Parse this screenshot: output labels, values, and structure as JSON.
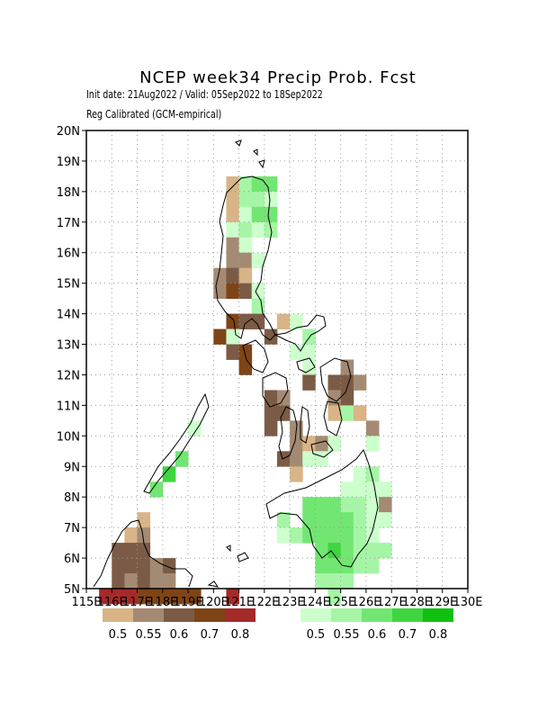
{
  "header": {
    "title": "NCEP week34 Precip Prob. Fcst",
    "init_line": "Init date: 21Aug2022 / Valid: 05Sep2022 to 18Sep2022",
    "calib_line": "Reg Calibrated (GCM-empirical)"
  },
  "map": {
    "lon_range": [
      115,
      130
    ],
    "lat_range": [
      5,
      20
    ],
    "lon_ticks": [
      "115E",
      "116E",
      "117E",
      "118E",
      "119E",
      "120E",
      "121E",
      "122E",
      "123E",
      "124E",
      "125E",
      "126E",
      "127E",
      "128E",
      "129E",
      "130E"
    ],
    "lat_ticks": [
      "5N",
      "6N",
      "7N",
      "8N",
      "9N",
      "10N",
      "11N",
      "12N",
      "13N",
      "14N",
      "15N",
      "16N",
      "17N",
      "18N",
      "19N",
      "20N"
    ],
    "grid": "dotted",
    "cell_deg": 0.5
  },
  "legend": {
    "dry": {
      "colors": [
        "#d8b486",
        "#a58a73",
        "#7b5b45",
        "#7f4416",
        "#a52a2a"
      ],
      "labels": [
        "0.5",
        "0.55",
        "0.6",
        "0.7",
        "0.8"
      ]
    },
    "wet": {
      "colors": [
        "#ccffcc",
        "#a6f5a6",
        "#72e672",
        "#3ed63e",
        "#10c010"
      ],
      "labels": [
        "0.5",
        "0.55",
        "0.6",
        "0.7",
        "0.8"
      ]
    }
  },
  "cells": [
    {
      "lon": 120.5,
      "lat": 18.0,
      "c": "#d8b486"
    },
    {
      "lon": 121.0,
      "lat": 18.0,
      "c": "#a6f5a6"
    },
    {
      "lon": 121.5,
      "lat": 18.0,
      "c": "#72e672"
    },
    {
      "lon": 122.0,
      "lat": 18.0,
      "c": "#72e672"
    },
    {
      "lon": 120.5,
      "lat": 17.5,
      "c": "#d8b486"
    },
    {
      "lon": 121.0,
      "lat": 17.5,
      "c": "#a6f5a6"
    },
    {
      "lon": 121.5,
      "lat": 17.5,
      "c": "#a6f5a6"
    },
    {
      "lon": 122.0,
      "lat": 17.5,
      "c": "#ccffcc"
    },
    {
      "lon": 120.5,
      "lat": 17.0,
      "c": "#d8b486"
    },
    {
      "lon": 121.0,
      "lat": 17.0,
      "c": "#ccffcc"
    },
    {
      "lon": 121.5,
      "lat": 17.0,
      "c": "#72e672"
    },
    {
      "lon": 122.0,
      "lat": 17.0,
      "c": "#72e672"
    },
    {
      "lon": 120.5,
      "lat": 16.5,
      "c": "#ccffcc"
    },
    {
      "lon": 121.0,
      "lat": 16.5,
      "c": "#a6f5a6"
    },
    {
      "lon": 121.5,
      "lat": 16.5,
      "c": "#ccffcc"
    },
    {
      "lon": 122.0,
      "lat": 16.5,
      "c": "#a6f5a6"
    },
    {
      "lon": 120.5,
      "lat": 16.0,
      "c": "#a58a73"
    },
    {
      "lon": 121.0,
      "lat": 16.0,
      "c": "#ccffcc"
    },
    {
      "lon": 120.5,
      "lat": 15.5,
      "c": "#a58a73"
    },
    {
      "lon": 121.0,
      "lat": 15.5,
      "c": "#a58a73"
    },
    {
      "lon": 121.5,
      "lat": 15.5,
      "c": "#ccffcc"
    },
    {
      "lon": 120.0,
      "lat": 15.0,
      "c": "#a58a73"
    },
    {
      "lon": 120.5,
      "lat": 15.0,
      "c": "#7b5b45"
    },
    {
      "lon": 121.0,
      "lat": 15.0,
      "c": "#d8b486"
    },
    {
      "lon": 120.0,
      "lat": 14.5,
      "c": "#a58a73"
    },
    {
      "lon": 120.5,
      "lat": 14.5,
      "c": "#7f4416"
    },
    {
      "lon": 121.0,
      "lat": 14.5,
      "c": "#7b5b45"
    },
    {
      "lon": 121.5,
      "lat": 14.5,
      "c": "#ccffcc"
    },
    {
      "lon": 121.5,
      "lat": 14.0,
      "c": "#a6f5a6"
    },
    {
      "lon": 120.5,
      "lat": 13.5,
      "c": "#7f4416"
    },
    {
      "lon": 121.0,
      "lat": 13.5,
      "c": "#7b5b45"
    },
    {
      "lon": 121.5,
      "lat": 13.5,
      "c": "#7b5b45"
    },
    {
      "lon": 122.5,
      "lat": 13.5,
      "c": "#d8b486"
    },
    {
      "lon": 123.0,
      "lat": 13.5,
      "c": "#ccffcc"
    },
    {
      "lon": 120.0,
      "lat": 13.0,
      "c": "#7f4416"
    },
    {
      "lon": 120.5,
      "lat": 13.0,
      "c": "#ccffcc"
    },
    {
      "lon": 122.0,
      "lat": 13.0,
      "c": "#7b5b45"
    },
    {
      "lon": 123.5,
      "lat": 13.0,
      "c": "#a6f5a6"
    },
    {
      "lon": 120.5,
      "lat": 12.5,
      "c": "#7b5b45"
    },
    {
      "lon": 121.0,
      "lat": 12.5,
      "c": "#7f4416"
    },
    {
      "lon": 123.0,
      "lat": 12.5,
      "c": "#ccffcc"
    },
    {
      "lon": 123.5,
      "lat": 12.5,
      "c": "#ccffcc"
    },
    {
      "lon": 121.0,
      "lat": 12.0,
      "c": "#7f4416"
    },
    {
      "lon": 123.5,
      "lat": 12.0,
      "c": "#ccffcc"
    },
    {
      "lon": 125.0,
      "lat": 12.0,
      "c": "#a58a73"
    },
    {
      "lon": 123.5,
      "lat": 11.5,
      "c": "#7b5b45"
    },
    {
      "lon": 124.5,
      "lat": 11.5,
      "c": "#7b5b45"
    },
    {
      "lon": 125.0,
      "lat": 11.5,
      "c": "#7b5b45"
    },
    {
      "lon": 125.5,
      "lat": 11.5,
      "c": "#a58a73"
    },
    {
      "lon": 122.0,
      "lat": 11.0,
      "c": "#7b5b45"
    },
    {
      "lon": 122.5,
      "lat": 11.0,
      "c": "#a58a73"
    },
    {
      "lon": 124.5,
      "lat": 11.0,
      "c": "#a58a73"
    },
    {
      "lon": 125.0,
      "lat": 11.0,
      "c": "#7b5b45"
    },
    {
      "lon": 122.0,
      "lat": 10.5,
      "c": "#7b5b45"
    },
    {
      "lon": 122.5,
      "lat": 10.5,
      "c": "#7b5b45"
    },
    {
      "lon": 124.5,
      "lat": 10.5,
      "c": "#d8b486"
    },
    {
      "lon": 125.0,
      "lat": 10.5,
      "c": "#a6f5a6"
    },
    {
      "lon": 125.5,
      "lat": 10.5,
      "c": "#d8b486"
    },
    {
      "lon": 122.0,
      "lat": 10.0,
      "c": "#7b5b45"
    },
    {
      "lon": 123.0,
      "lat": 10.0,
      "c": "#a58a73"
    },
    {
      "lon": 126.0,
      "lat": 10.0,
      "c": "#a58a73"
    },
    {
      "lon": 123.0,
      "lat": 9.5,
      "c": "#a58a73"
    },
    {
      "lon": 123.5,
      "lat": 9.5,
      "c": "#d8b486"
    },
    {
      "lon": 124.0,
      "lat": 9.5,
      "c": "#a58a73"
    },
    {
      "lon": 124.5,
      "lat": 9.5,
      "c": "#ccffcc"
    },
    {
      "lon": 126.0,
      "lat": 9.5,
      "c": "#ccffcc"
    },
    {
      "lon": 122.5,
      "lat": 9.0,
      "c": "#7b5b45"
    },
    {
      "lon": 123.0,
      "lat": 9.0,
      "c": "#a58a73"
    },
    {
      "lon": 123.5,
      "lat": 9.0,
      "c": "#ccffcc"
    },
    {
      "lon": 124.0,
      "lat": 9.0,
      "c": "#ccffcc"
    },
    {
      "lon": 123.0,
      "lat": 8.5,
      "c": "#d8b486"
    },
    {
      "lon": 125.5,
      "lat": 8.5,
      "c": "#ccffcc"
    },
    {
      "lon": 126.0,
      "lat": 8.5,
      "c": "#a6f5a6"
    },
    {
      "lon": 125.0,
      "lat": 8.0,
      "c": "#ccffcc"
    },
    {
      "lon": 125.5,
      "lat": 8.0,
      "c": "#ccffcc"
    },
    {
      "lon": 126.0,
      "lat": 8.0,
      "c": "#ccffcc"
    },
    {
      "lon": 126.5,
      "lat": 8.0,
      "c": "#ccffcc"
    },
    {
      "lon": 123.5,
      "lat": 7.5,
      "c": "#72e672"
    },
    {
      "lon": 124.0,
      "lat": 7.5,
      "c": "#72e672"
    },
    {
      "lon": 124.5,
      "lat": 7.5,
      "c": "#72e672"
    },
    {
      "lon": 125.0,
      "lat": 7.5,
      "c": "#a6f5a6"
    },
    {
      "lon": 125.5,
      "lat": 7.5,
      "c": "#a6f5a6"
    },
    {
      "lon": 126.0,
      "lat": 7.5,
      "c": "#ccffcc"
    },
    {
      "lon": 126.5,
      "lat": 7.5,
      "c": "#a58a73"
    },
    {
      "lon": 122.5,
      "lat": 7.0,
      "c": "#a6f5a6"
    },
    {
      "lon": 123.5,
      "lat": 7.0,
      "c": "#72e672"
    },
    {
      "lon": 124.0,
      "lat": 7.0,
      "c": "#72e672"
    },
    {
      "lon": 124.5,
      "lat": 7.0,
      "c": "#72e672"
    },
    {
      "lon": 125.0,
      "lat": 7.0,
      "c": "#72e672"
    },
    {
      "lon": 125.5,
      "lat": 7.0,
      "c": "#a6f5a6"
    },
    {
      "lon": 126.0,
      "lat": 7.0,
      "c": "#ccffcc"
    },
    {
      "lon": 126.5,
      "lat": 7.0,
      "c": "#ccffcc"
    },
    {
      "lon": 122.5,
      "lat": 6.5,
      "c": "#ccffcc"
    },
    {
      "lon": 123.0,
      "lat": 6.5,
      "c": "#a6f5a6"
    },
    {
      "lon": 123.5,
      "lat": 6.5,
      "c": "#72e672"
    },
    {
      "lon": 124.0,
      "lat": 6.5,
      "c": "#72e672"
    },
    {
      "lon": 124.5,
      "lat": 6.5,
      "c": "#72e672"
    },
    {
      "lon": 125.0,
      "lat": 6.5,
      "c": "#72e672"
    },
    {
      "lon": 125.5,
      "lat": 6.5,
      "c": "#a6f5a6"
    },
    {
      "lon": 126.0,
      "lat": 6.5,
      "c": "#ccffcc"
    },
    {
      "lon": 124.0,
      "lat": 6.0,
      "c": "#72e672"
    },
    {
      "lon": 124.5,
      "lat": 6.0,
      "c": "#3ed63e"
    },
    {
      "lon": 125.0,
      "lat": 6.0,
      "c": "#72e672"
    },
    {
      "lon": 125.5,
      "lat": 6.0,
      "c": "#a6f5a6"
    },
    {
      "lon": 126.0,
      "lat": 6.0,
      "c": "#a6f5a6"
    },
    {
      "lon": 126.5,
      "lat": 6.0,
      "c": "#a6f5a6"
    },
    {
      "lon": 124.0,
      "lat": 5.5,
      "c": "#72e672"
    },
    {
      "lon": 124.5,
      "lat": 5.5,
      "c": "#72e672"
    },
    {
      "lon": 125.0,
      "lat": 5.5,
      "c": "#72e672"
    },
    {
      "lon": 125.5,
      "lat": 5.5,
      "c": "#a6f5a6"
    },
    {
      "lon": 126.0,
      "lat": 5.5,
      "c": "#a6f5a6"
    },
    {
      "lon": 124.0,
      "lat": 5.0,
      "c": "#a6f5a6"
    },
    {
      "lon": 124.5,
      "lat": 5.0,
      "c": "#a6f5a6"
    },
    {
      "lon": 125.0,
      "lat": 5.0,
      "c": "#a6f5a6"
    },
    {
      "lon": 124.5,
      "lat": 4.5,
      "c": "#a6f5a6"
    },
    {
      "lon": 118.5,
      "lat": 9.0,
      "c": "#72e672"
    },
    {
      "lon": 118.0,
      "lat": 8.5,
      "c": "#3ed63e"
    },
    {
      "lon": 117.5,
      "lat": 8.0,
      "c": "#72e672"
    },
    {
      "lon": 119.0,
      "lat": 10.0,
      "c": "#ccffcc"
    },
    {
      "lon": 117.0,
      "lat": 7.0,
      "c": "#d8b486"
    },
    {
      "lon": 116.5,
      "lat": 6.5,
      "c": "#d8b486"
    },
    {
      "lon": 117.0,
      "lat": 6.5,
      "c": "#a58a73"
    },
    {
      "lon": 116.0,
      "lat": 6.0,
      "c": "#7b5b45"
    },
    {
      "lon": 116.5,
      "lat": 6.0,
      "c": "#7b5b45"
    },
    {
      "lon": 117.0,
      "lat": 6.0,
      "c": "#7b5b45"
    },
    {
      "lon": 116.0,
      "lat": 5.5,
      "c": "#7b5b45"
    },
    {
      "lon": 116.5,
      "lat": 5.5,
      "c": "#7b5b45"
    },
    {
      "lon": 117.0,
      "lat": 5.5,
      "c": "#7b5b45"
    },
    {
      "lon": 117.5,
      "lat": 5.5,
      "c": "#a58a73"
    },
    {
      "lon": 118.0,
      "lat": 5.5,
      "c": "#7b5b45"
    },
    {
      "lon": 116.0,
      "lat": 5.0,
      "c": "#7b5b45"
    },
    {
      "lon": 116.5,
      "lat": 5.0,
      "c": "#a58a73"
    },
    {
      "lon": 117.0,
      "lat": 5.0,
      "c": "#7b5b45"
    },
    {
      "lon": 117.5,
      "lat": 5.0,
      "c": "#a58a73"
    },
    {
      "lon": 118.0,
      "lat": 5.0,
      "c": "#a58a73"
    },
    {
      "lon": 115.5,
      "lat": 4.5,
      "c": "#a52a2a"
    },
    {
      "lon": 116.0,
      "lat": 4.5,
      "c": "#a52a2a"
    },
    {
      "lon": 116.5,
      "lat": 4.5,
      "c": "#a52a2a"
    },
    {
      "lon": 117.0,
      "lat": 4.5,
      "c": "#7f4416"
    },
    {
      "lon": 117.5,
      "lat": 4.5,
      "c": "#7f4416"
    },
    {
      "lon": 118.0,
      "lat": 4.5,
      "c": "#7f4416"
    },
    {
      "lon": 118.5,
      "lat": 4.5,
      "c": "#7f4416"
    },
    {
      "lon": 119.0,
      "lat": 4.5,
      "c": "#7f4416"
    },
    {
      "lon": 120.5,
      "lat": 4.5,
      "c": "#a52a2a"
    }
  ]
}
